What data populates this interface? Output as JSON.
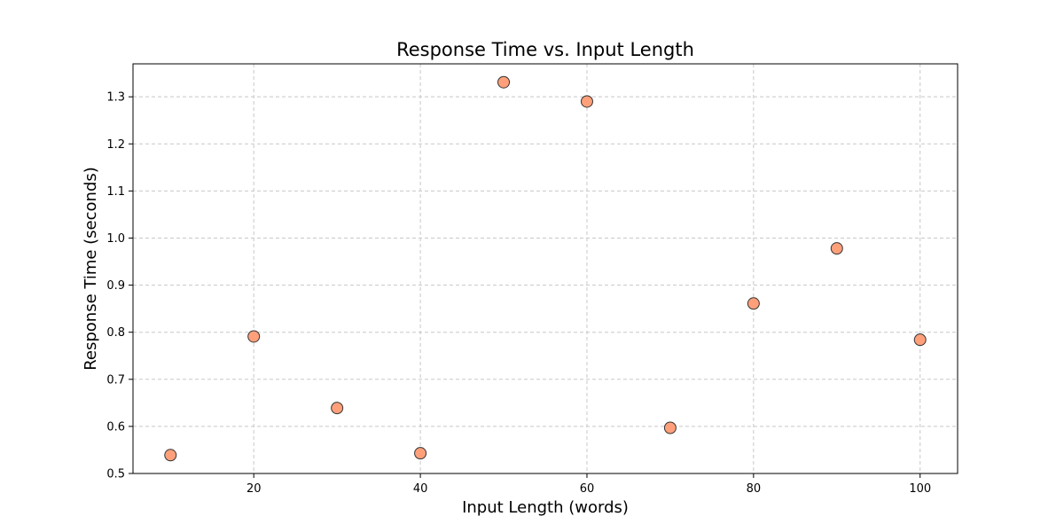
{
  "chart_data": {
    "type": "scatter",
    "title": "Response Time vs. Input Length",
    "xlabel": "Input Length (words)",
    "ylabel": "Response Time (seconds)",
    "xlim": [
      5.5,
      104.5
    ],
    "ylim": [
      0.5,
      1.37
    ],
    "xticks": [
      20,
      40,
      60,
      80,
      100
    ],
    "yticks": [
      0.5,
      0.6,
      0.7,
      0.8,
      0.9,
      1.0,
      1.1,
      1.2,
      1.3
    ],
    "grid": true,
    "grid_style": "dashed",
    "marker_color": "#FFA07A",
    "marker_edge_color": "#333333",
    "x": [
      10,
      20,
      30,
      40,
      50,
      60,
      70,
      80,
      90,
      100
    ],
    "y": [
      0.539,
      0.791,
      0.639,
      0.543,
      1.331,
      1.29,
      0.597,
      0.861,
      0.978,
      0.784
    ]
  }
}
